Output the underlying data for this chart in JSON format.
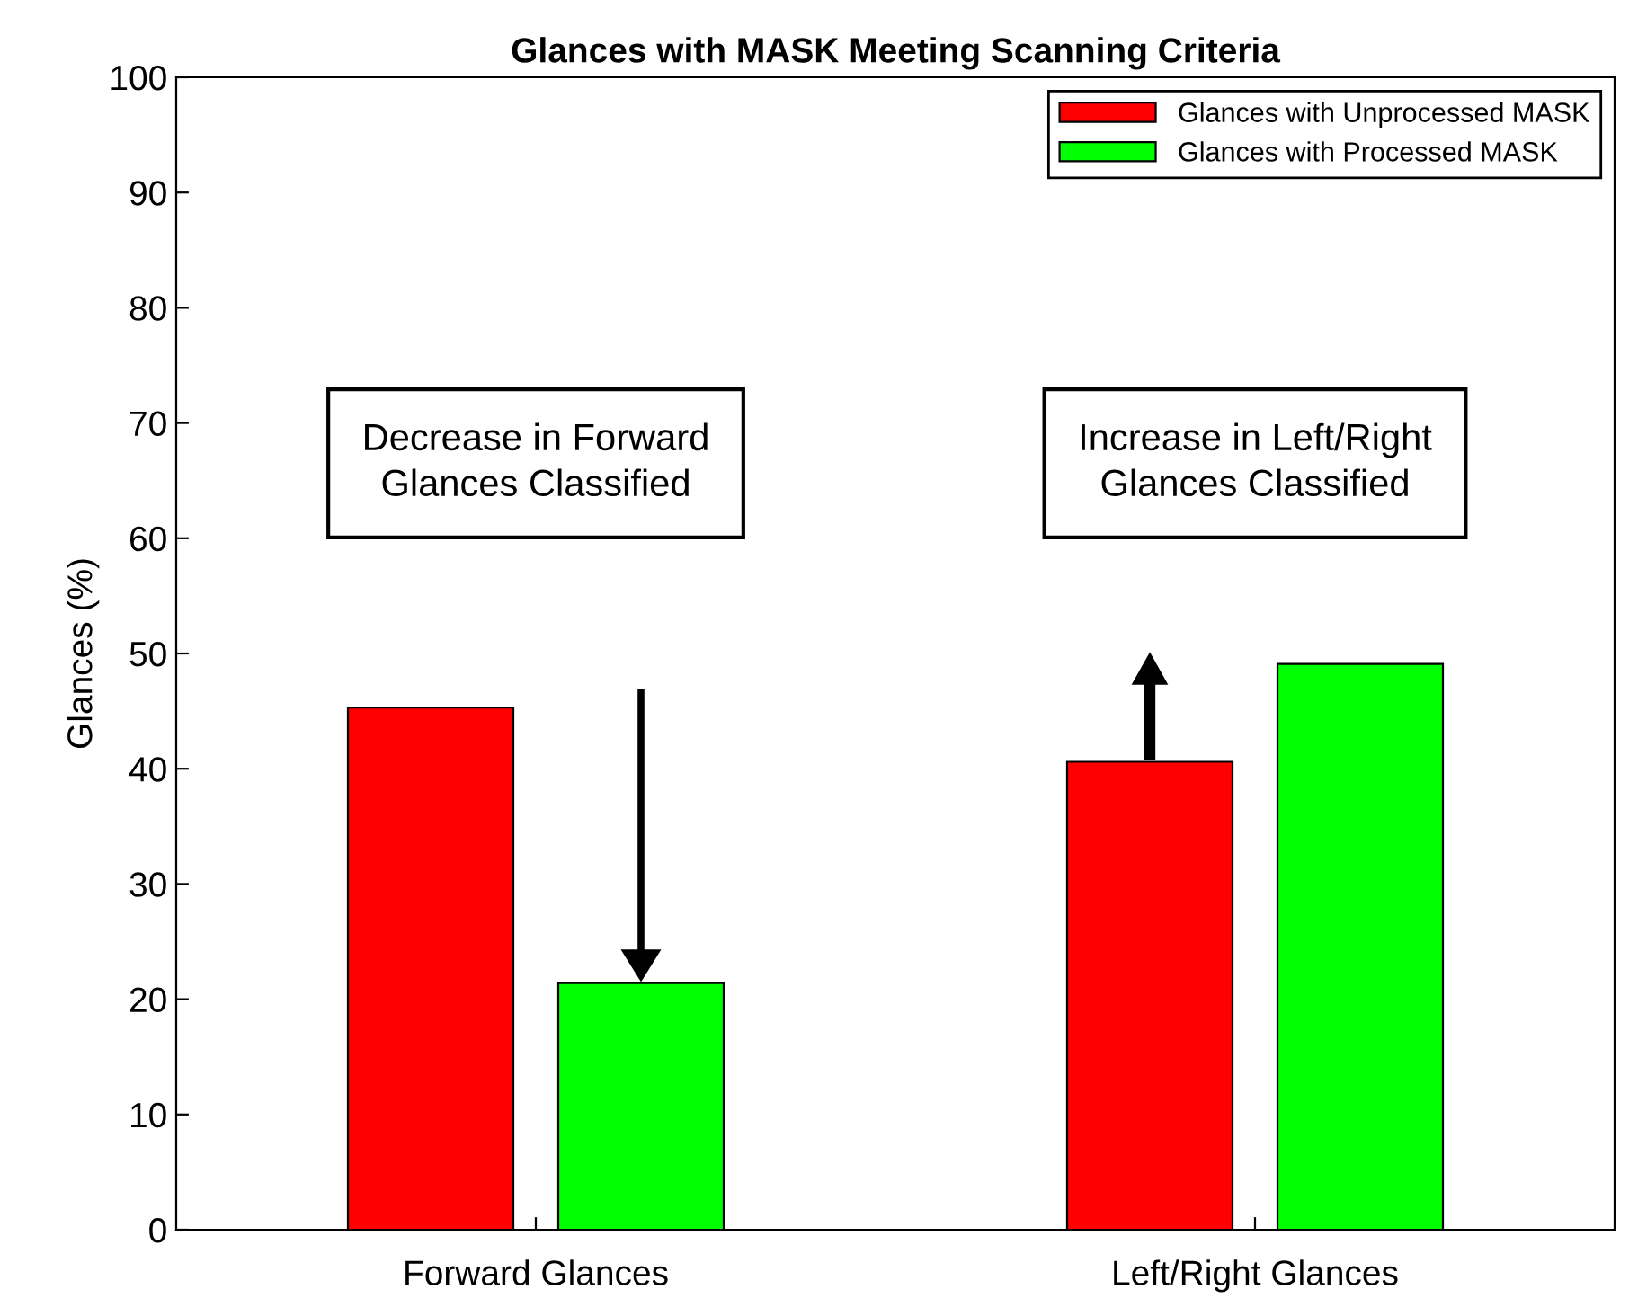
{
  "chart_data": {
    "type": "bar",
    "title": "Glances with MASK Meeting Scanning Criteria",
    "ylabel": "Glances (%)",
    "categories": [
      "Forward Glances",
      "Left/Right Glances"
    ],
    "series": [
      {
        "name": "Glances with Unprocessed MASK",
        "color": "#ff0000",
        "values": [
          45.3,
          40.6
        ]
      },
      {
        "name": "Glances with Processed MASK",
        "color": "#00ff00",
        "values": [
          21.4,
          49.1
        ]
      }
    ],
    "ylim": [
      0,
      100
    ],
    "yticks": [
      0,
      10,
      20,
      30,
      40,
      50,
      60,
      70,
      80,
      90,
      100
    ],
    "annotations": [
      "Decrease in Forward\nGlances Classified",
      "Increase in Left/Right\nGlances Classified"
    ],
    "legend": "top right",
    "grid": false
  }
}
